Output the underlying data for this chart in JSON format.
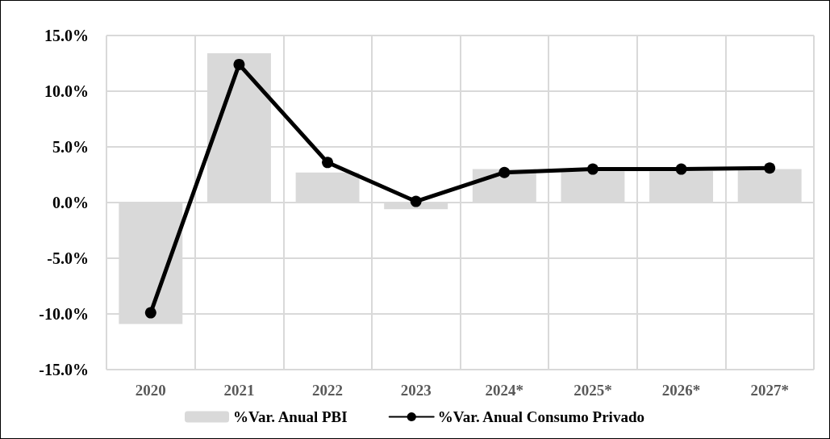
{
  "chart_data": {
    "type": "bar",
    "categories": [
      "2020",
      "2021",
      "2022",
      "2023",
      "2024*",
      "2025*",
      "2026*",
      "2027*"
    ],
    "series": [
      {
        "name": "%Var. Anual PBI",
        "color": "#d9d9d9",
        "values": [
          -10.9,
          13.4,
          2.7,
          -0.6,
          3.0,
          2.8,
          2.8,
          3.0
        ]
      },
      {
        "name": "%Var. Anual Consumo Privado",
        "type": "line",
        "color": "#000000",
        "values": [
          -9.9,
          12.4,
          3.6,
          0.1,
          2.7,
          3.0,
          3.0,
          3.1
        ]
      }
    ],
    "ylim": [
      -15,
      15
    ],
    "yticks": [
      {
        "value": -15,
        "label": "-15.0%"
      },
      {
        "value": -10,
        "label": "-10.0%"
      },
      {
        "value": -5,
        "label": "-5.0%"
      },
      {
        "value": 0,
        "label": "0.0%"
      },
      {
        "value": 5,
        "label": "5.0%"
      },
      {
        "value": 10,
        "label": "10.0%"
      },
      {
        "value": 15,
        "label": "15.0%"
      }
    ],
    "grid": true,
    "legend": "bottom",
    "marker": "circle",
    "line_style": "solid"
  }
}
